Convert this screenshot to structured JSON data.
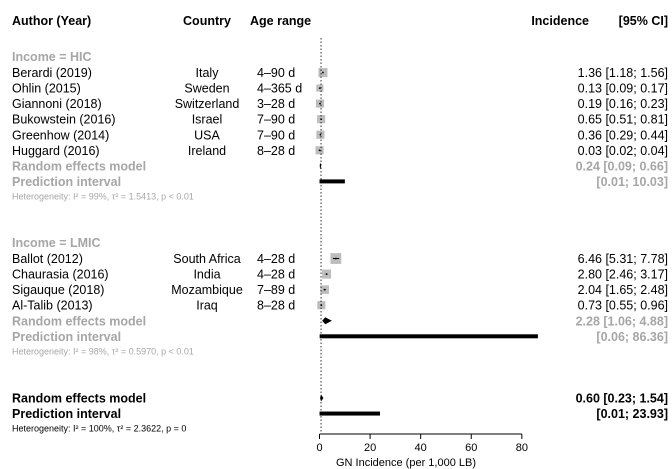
{
  "headers": {
    "author": "Author (Year)",
    "country": "Country",
    "age": "Age range",
    "incidence": "Incidence",
    "ci": "[95% CI]"
  },
  "chart_data": {
    "type": "forest",
    "xlabel": "GN Incidence (per 1,000 LB)",
    "xlim": [
      0,
      90
    ],
    "xticks": [
      0,
      20,
      40,
      60,
      80
    ],
    "null_line": 0.6,
    "groups": [
      {
        "title": "Income = HIC",
        "studies": [
          {
            "author": "Berardi (2019)",
            "country": "Italy",
            "age": "4–90 d",
            "est": 1.36,
            "lo": 1.18,
            "hi": 1.56,
            "text": "1.36 [1.18; 1.56]",
            "weight": 1.0
          },
          {
            "author": "Ohlin (2015)",
            "country": "Sweden",
            "age": "4–365 d",
            "est": 0.13,
            "lo": 0.09,
            "hi": 0.17,
            "text": "0.13 [0.09; 0.17]",
            "weight": 0.8
          },
          {
            "author": "Giannoni (2018)",
            "country": "Switzerland",
            "age": "3–28 d",
            "est": 0.19,
            "lo": 0.16,
            "hi": 0.23,
            "text": "0.19 [0.16; 0.23]",
            "weight": 0.9
          },
          {
            "author": "Bukowstein (2016)",
            "country": "Israel",
            "age": "7–90 d",
            "est": 0.65,
            "lo": 0.51,
            "hi": 0.81,
            "text": "0.65 [0.51; 0.81]",
            "weight": 0.9
          },
          {
            "author": "Greenhow (2014)",
            "country": "USA",
            "age": "7–90 d",
            "est": 0.36,
            "lo": 0.29,
            "hi": 0.44,
            "text": "0.36 [0.29; 0.44]",
            "weight": 0.9
          },
          {
            "author": "Huggard (2016)",
            "country": "Ireland",
            "age": "8–28 d",
            "est": 0.03,
            "lo": 0.02,
            "hi": 0.04,
            "text": "0.03 [0.02; 0.04]",
            "weight": 0.9
          }
        ],
        "random_label": "Random effects model",
        "random": {
          "est": 0.24,
          "lo": 0.09,
          "hi": 0.66,
          "text": "0.24   [0.09; 0.66]"
        },
        "prediction_label": "Prediction interval",
        "prediction": {
          "lo": 0.01,
          "hi": 10.03,
          "text": "[0.01; 10.03]"
        },
        "heterogeneity": "Heterogeneity: I² = 99%, τ² = 1.5413, p < 0.01"
      },
      {
        "title": "Income = LMIC",
        "studies": [
          {
            "author": "Ballot (2012)",
            "country": "South Africa",
            "age": "4–28 d",
            "est": 6.46,
            "lo": 5.31,
            "hi": 7.78,
            "text": "6.46 [5.31; 7.78]",
            "weight": 1.2
          },
          {
            "author": "Chaurasia (2016)",
            "country": "India",
            "age": "4–28 d",
            "est": 2.8,
            "lo": 2.46,
            "hi": 3.17,
            "text": "2.80 [2.46; 3.17]",
            "weight": 1.0
          },
          {
            "author": "Sigauque (2018)",
            "country": "Mozambique",
            "age": "7–89 d",
            "est": 2.04,
            "lo": 1.65,
            "hi": 2.48,
            "text": "2.04 [1.65; 2.48]",
            "weight": 0.95
          },
          {
            "author": "Al-Talib (2013)",
            "country": "Iraq",
            "age": "8–28 d",
            "est": 0.73,
            "lo": 0.55,
            "hi": 0.96,
            "text": "0.73 [0.55; 0.96]",
            "weight": 0.9
          }
        ],
        "random_label": "Random effects model",
        "random": {
          "est": 2.28,
          "lo": 1.06,
          "hi": 4.88,
          "text": "2.28   [1.06; 4.88]"
        },
        "prediction_label": "Prediction interval",
        "prediction": {
          "lo": 0.06,
          "hi": 86.36,
          "text": "[0.06; 86.36]"
        },
        "heterogeneity": "Heterogeneity: I² = 98%, τ² = 0.5970, p < 0.01"
      }
    ],
    "overall": {
      "random_label": "Random effects model",
      "random": {
        "est": 0.6,
        "lo": 0.23,
        "hi": 1.54,
        "text": "0.60   [0.23; 1.54]"
      },
      "prediction_label": "Prediction interval",
      "prediction": {
        "lo": 0.01,
        "hi": 23.93,
        "text": "[0.01; 23.93]"
      },
      "heterogeneity": "Heterogeneity: I² = 100%, τ² = 2.3622, p = 0"
    }
  }
}
